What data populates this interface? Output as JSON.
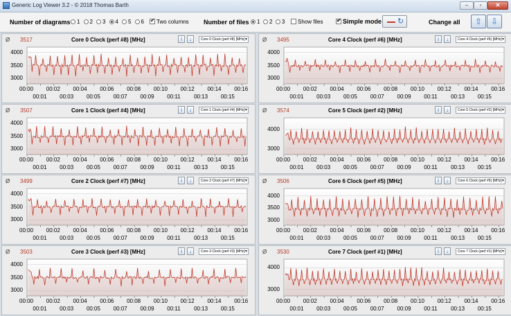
{
  "window": {
    "title": "Generic Log Viewer 3.2 - © 2018 Thomas Barth",
    "minimize_glyph": "–",
    "maximize_glyph": "▫",
    "close_glyph": "✕"
  },
  "toolbar": {
    "diagrams_label": "Number of diagrams",
    "diagram_options": [
      "1",
      "2",
      "3",
      "4",
      "5",
      "6"
    ],
    "diagrams_selected": "4",
    "two_columns_label": "Two columns",
    "two_columns_checked": true,
    "files_label": "Number of files",
    "file_options": [
      "1",
      "2",
      "3"
    ],
    "files_selected": "1",
    "show_files_label": "Show files",
    "show_files_checked": false,
    "simple_mode_label": "Simple mode",
    "simple_mode_checked": true,
    "change_all_label": "Change all",
    "line_color": "#c0392b",
    "icons": {
      "refresh": "refresh-icon",
      "up": "arrow-up-icon",
      "down": "arrow-down-icon"
    },
    "up_glyph": "⇧",
    "down_glyph": "⇩",
    "refresh_glyph": "↻"
  },
  "avg_symbol": "Ø",
  "time_ticks_top": [
    "00:00",
    "00:02",
    "00:04",
    "00:06",
    "00:08",
    "00:10",
    "00:12",
    "00:14",
    "00:16"
  ],
  "time_ticks_bottom": [
    "00:01",
    "00:03",
    "00:05",
    "00:07",
    "00:09",
    "00:11",
    "00:13",
    "00:15"
  ],
  "mini_buttons": {
    "info_glyph": "i",
    "down_glyph": "↓"
  },
  "panels": [
    {
      "avg": "3517",
      "title": "Core 0 Clock (perf #8) [MHz]",
      "select": "Core 0 Clock (perf #8) [MHz]",
      "yticks": [
        "4000",
        "3500",
        "3000"
      ],
      "ylim": [
        2800,
        4200
      ],
      "base": 3500,
      "spike_period": 8,
      "spike_amp": 450,
      "dip_amp": 420
    },
    {
      "avg": "3495",
      "title": "Core 4 Clock (perf #6) [MHz]",
      "select": "Core 4 Clock (perf #6) [MHz]",
      "yticks": [
        "4000",
        "3500",
        "3000"
      ],
      "ylim": [
        2800,
        4200
      ],
      "base": 3480,
      "spike_period": 11,
      "spike_amp": 280,
      "dip_amp": 300
    },
    {
      "avg": "3507",
      "title": "Core 1 Clock (perf #4) [MHz]",
      "select": "Core 1 Clock (perf #4) [MHz]",
      "yticks": [
        "4000",
        "3500",
        "3000"
      ],
      "ylim": [
        2800,
        4200
      ],
      "base": 3480,
      "spike_period": 9,
      "spike_amp": 420,
      "dip_amp": 380
    },
    {
      "avg": "3574",
      "title": "Core 5 Clock (perf #2) [MHz]",
      "select": "Core 5 Clock (perf #2) [MHz]",
      "yticks": [
        "4000",
        "3000"
      ],
      "ylim": [
        2700,
        4600
      ],
      "base": 3500,
      "spike_period": 6,
      "spike_amp": 650,
      "dip_amp": 300
    },
    {
      "avg": "3499",
      "title": "Core 2 Clock (perf #7) [MHz]",
      "select": "Core 2 Clock (perf #7) [MHz]",
      "yticks": [
        "4000",
        "3500",
        "3000"
      ],
      "ylim": [
        2800,
        4200
      ],
      "base": 3500,
      "spike_period": 10,
      "spike_amp": 350,
      "dip_amp": 380
    },
    {
      "avg": "3506",
      "title": "Core 6 Clock (perf #5) [MHz]",
      "select": "Core 6 Clock (perf #5) [MHz]",
      "yticks": [
        "4000",
        "3500",
        "3000"
      ],
      "ylim": [
        2800,
        4300
      ],
      "base": 3450,
      "spike_period": 7,
      "spike_amp": 550,
      "dip_amp": 350
    },
    {
      "avg": "3503",
      "title": "Core 3 Clock (perf #3) [MHz]",
      "select": "Core 3 Clock (perf #3) [MHz]",
      "yticks": [
        "4000",
        "3500",
        "3000"
      ],
      "ylim": [
        2800,
        4200
      ],
      "base": 3500,
      "spike_period": 12,
      "spike_amp": 380,
      "dip_amp": 340
    },
    {
      "avg": "3530",
      "title": "Core 7 Clock (perf #1) [MHz]",
      "select": "Core 7 Clock (perf #1) [MHz]",
      "yticks": [
        "4000",
        "3000"
      ],
      "ylim": [
        2700,
        4400
      ],
      "base": 3450,
      "spike_period": 6,
      "spike_amp": 600,
      "dip_amp": 300
    }
  ]
}
